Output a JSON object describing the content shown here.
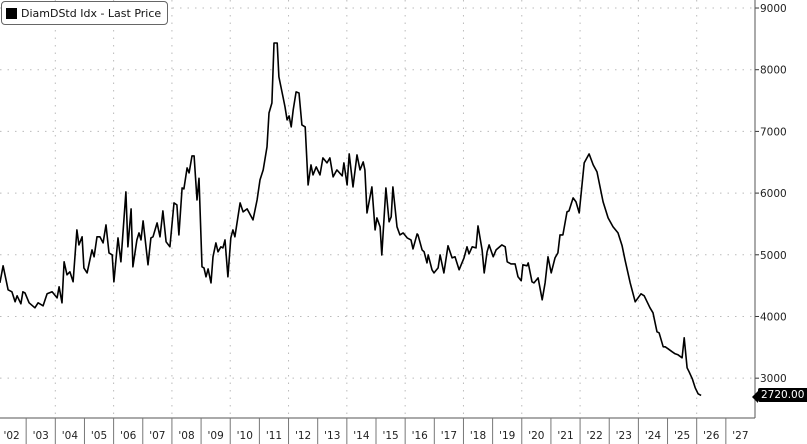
{
  "chart_data": {
    "type": "line",
    "title": "",
    "legend": {
      "label": "DiamDStd Idx - Last Price",
      "placement": "top-left"
    },
    "y_axis": {
      "side": "right",
      "ticks": [
        3000,
        4000,
        5000,
        6000,
        7000,
        8000,
        9000
      ],
      "ylim": [
        2630,
        9130
      ]
    },
    "x_axis": {
      "ticks": [
        "'02",
        "'03",
        "'04",
        "'05",
        "'06",
        "'07",
        "'08",
        "'09",
        "'10",
        "'11",
        "'12",
        "'13",
        "'14",
        "'15",
        "'16",
        "'17",
        "'18",
        "'19",
        "'20",
        "'21",
        "'22",
        "'23",
        "'24",
        "'25",
        "'26",
        "'27"
      ],
      "xlim": [
        2002,
        2028
      ]
    },
    "grid": true,
    "last_value_label": "2720.00",
    "line_color": "#000000",
    "series": [
      {
        "name": "DiamDStd Idx - Last Price",
        "points": [
          [
            2002.1,
            4545
          ],
          [
            2002.21,
            4821
          ],
          [
            2002.38,
            4432
          ],
          [
            2002.51,
            4400
          ],
          [
            2002.62,
            4238
          ],
          [
            2002.69,
            4335
          ],
          [
            2002.82,
            4205
          ],
          [
            2002.89,
            4400
          ],
          [
            2002.96,
            4383
          ],
          [
            2003.1,
            4221
          ],
          [
            2003.3,
            4140
          ],
          [
            2003.41,
            4221
          ],
          [
            2003.58,
            4173
          ],
          [
            2003.72,
            4367
          ],
          [
            2003.89,
            4400
          ],
          [
            2004.06,
            4302
          ],
          [
            2004.13,
            4481
          ],
          [
            2004.23,
            4221
          ],
          [
            2004.3,
            4886
          ],
          [
            2004.4,
            4675
          ],
          [
            2004.5,
            4724
          ],
          [
            2004.61,
            4562
          ],
          [
            2004.74,
            5404
          ],
          [
            2004.81,
            5161
          ],
          [
            2004.92,
            5291
          ],
          [
            2004.98,
            4788
          ],
          [
            2005.09,
            4707
          ],
          [
            2005.26,
            5080
          ],
          [
            2005.33,
            4967
          ],
          [
            2005.43,
            5291
          ],
          [
            2005.53,
            5291
          ],
          [
            2005.64,
            5193
          ],
          [
            2005.74,
            5485
          ],
          [
            2005.84,
            5031
          ],
          [
            2005.95,
            4999
          ],
          [
            2006.01,
            4562
          ],
          [
            2006.15,
            5274
          ],
          [
            2006.25,
            4886
          ],
          [
            2006.42,
            6020
          ],
          [
            2006.49,
            5129
          ],
          [
            2006.6,
            5744
          ],
          [
            2006.66,
            4805
          ],
          [
            2006.8,
            5242
          ],
          [
            2006.87,
            5355
          ],
          [
            2006.94,
            5242
          ],
          [
            2007.01,
            5550
          ],
          [
            2007.18,
            4837
          ],
          [
            2007.28,
            5274
          ],
          [
            2007.35,
            5291
          ],
          [
            2007.49,
            5517
          ],
          [
            2007.59,
            5291
          ],
          [
            2007.69,
            5712
          ],
          [
            2007.8,
            5210
          ],
          [
            2007.93,
            5129
          ],
          [
            2008.07,
            5841
          ],
          [
            2008.17,
            5809
          ],
          [
            2008.24,
            5323
          ],
          [
            2008.35,
            6084
          ],
          [
            2008.41,
            6068
          ],
          [
            2008.52,
            6408
          ],
          [
            2008.59,
            6327
          ],
          [
            2008.69,
            6603
          ],
          [
            2008.76,
            6603
          ],
          [
            2008.86,
            5890
          ],
          [
            2008.93,
            6240
          ],
          [
            2009.03,
            4805
          ],
          [
            2009.1,
            4788
          ],
          [
            2009.17,
            4643
          ],
          [
            2009.24,
            4772
          ],
          [
            2009.34,
            4545
          ],
          [
            2009.41,
            4967
          ],
          [
            2009.51,
            5193
          ],
          [
            2009.58,
            5048
          ],
          [
            2009.68,
            5129
          ],
          [
            2009.75,
            5112
          ],
          [
            2009.82,
            5242
          ],
          [
            2009.92,
            4643
          ],
          [
            2010.02,
            5274
          ],
          [
            2010.09,
            5404
          ],
          [
            2010.16,
            5291
          ],
          [
            2010.34,
            5841
          ],
          [
            2010.44,
            5696
          ],
          [
            2010.58,
            5744
          ],
          [
            2010.78,
            5566
          ],
          [
            2010.92,
            5890
          ],
          [
            2011.02,
            6214
          ],
          [
            2011.13,
            6376
          ],
          [
            2011.26,
            6749
          ],
          [
            2011.33,
            7299
          ],
          [
            2011.43,
            7461
          ],
          [
            2011.5,
            8433
          ],
          [
            2011.61,
            8433
          ],
          [
            2011.67,
            7883
          ],
          [
            2011.81,
            7559
          ],
          [
            2011.88,
            7397
          ],
          [
            2011.95,
            7186
          ],
          [
            2012.02,
            7251
          ],
          [
            2012.09,
            7073
          ],
          [
            2012.16,
            7348
          ],
          [
            2012.26,
            7640
          ],
          [
            2012.36,
            7623
          ],
          [
            2012.46,
            7105
          ],
          [
            2012.57,
            7073
          ],
          [
            2012.67,
            6133
          ],
          [
            2012.77,
            6457
          ],
          [
            2012.84,
            6295
          ],
          [
            2012.95,
            6425
          ],
          [
            2013.08,
            6295
          ],
          [
            2013.18,
            6570
          ],
          [
            2013.32,
            6489
          ],
          [
            2013.42,
            6570
          ],
          [
            2013.53,
            6263
          ],
          [
            2013.66,
            6376
          ],
          [
            2013.84,
            6279
          ],
          [
            2013.9,
            6489
          ],
          [
            2014.01,
            6133
          ],
          [
            2014.08,
            6635
          ],
          [
            2014.21,
            6101
          ],
          [
            2014.35,
            6619
          ],
          [
            2014.45,
            6376
          ],
          [
            2014.56,
            6506
          ],
          [
            2014.62,
            6376
          ],
          [
            2014.69,
            5679
          ],
          [
            2014.86,
            6101
          ],
          [
            2014.97,
            5404
          ],
          [
            2015.03,
            5598
          ],
          [
            2015.14,
            5453
          ],
          [
            2015.2,
            4999
          ],
          [
            2015.34,
            6084
          ],
          [
            2015.45,
            5534
          ],
          [
            2015.52,
            5615
          ],
          [
            2015.58,
            6101
          ],
          [
            2015.72,
            5453
          ],
          [
            2015.82,
            5323
          ],
          [
            2015.93,
            5355
          ],
          [
            2016.07,
            5274
          ],
          [
            2016.2,
            5242
          ],
          [
            2016.27,
            5096
          ],
          [
            2016.41,
            5339
          ],
          [
            2016.44,
            5323
          ],
          [
            2016.58,
            5080
          ],
          [
            2016.65,
            5048
          ],
          [
            2016.75,
            4869
          ],
          [
            2016.79,
            4999
          ],
          [
            2016.92,
            4756
          ],
          [
            2016.99,
            4707
          ],
          [
            2017.13,
            4788
          ],
          [
            2017.2,
            4999
          ],
          [
            2017.33,
            4707
          ],
          [
            2017.47,
            5145
          ],
          [
            2017.61,
            4950
          ],
          [
            2017.71,
            4967
          ],
          [
            2017.85,
            4756
          ],
          [
            2018.02,
            4950
          ],
          [
            2018.12,
            5129
          ],
          [
            2018.19,
            5015
          ],
          [
            2018.3,
            5129
          ],
          [
            2018.43,
            5112
          ],
          [
            2018.5,
            5469
          ],
          [
            2018.64,
            5080
          ],
          [
            2018.71,
            4707
          ],
          [
            2018.81,
            5048
          ],
          [
            2018.88,
            5161
          ],
          [
            2019.02,
            4967
          ],
          [
            2019.12,
            5080
          ],
          [
            2019.32,
            5161
          ],
          [
            2019.43,
            5129
          ],
          [
            2019.5,
            4886
          ],
          [
            2019.63,
            4853
          ],
          [
            2019.77,
            4853
          ],
          [
            2019.87,
            4643
          ],
          [
            2019.98,
            4578
          ],
          [
            2020.04,
            4837
          ],
          [
            2020.18,
            4821
          ],
          [
            2020.22,
            4869
          ],
          [
            2020.35,
            4562
          ],
          [
            2020.42,
            4545
          ],
          [
            2020.56,
            4626
          ],
          [
            2020.7,
            4270
          ],
          [
            2020.8,
            4545
          ],
          [
            2020.9,
            4967
          ],
          [
            2021.01,
            4707
          ],
          [
            2021.14,
            4950
          ],
          [
            2021.24,
            5031
          ],
          [
            2021.31,
            5323
          ],
          [
            2021.41,
            5323
          ],
          [
            2021.55,
            5696
          ],
          [
            2021.62,
            5712
          ],
          [
            2021.76,
            5922
          ],
          [
            2021.86,
            5858
          ],
          [
            2021.97,
            5679
          ],
          [
            2022.14,
            6489
          ],
          [
            2022.31,
            6635
          ],
          [
            2022.45,
            6457
          ],
          [
            2022.58,
            6344
          ],
          [
            2022.79,
            5858
          ],
          [
            2022.96,
            5598
          ],
          [
            2023.13,
            5453
          ],
          [
            2023.3,
            5355
          ],
          [
            2023.44,
            5145
          ],
          [
            2023.54,
            4918
          ],
          [
            2023.72,
            4545
          ],
          [
            2023.89,
            4238
          ],
          [
            2024.09,
            4367
          ],
          [
            2024.2,
            4335
          ],
          [
            2024.4,
            4140
          ],
          [
            2024.5,
            4059
          ],
          [
            2024.64,
            3752
          ],
          [
            2024.71,
            3735
          ],
          [
            2024.85,
            3509
          ],
          [
            2024.92,
            3509
          ],
          [
            2025.02,
            3476
          ],
          [
            2025.16,
            3428
          ],
          [
            2025.26,
            3395
          ],
          [
            2025.36,
            3379
          ],
          [
            2025.5,
            3330
          ],
          [
            2025.57,
            3654
          ],
          [
            2025.67,
            3168
          ],
          [
            2025.74,
            3104
          ],
          [
            2025.85,
            2990
          ],
          [
            2025.95,
            2844
          ],
          [
            2026.05,
            2747
          ],
          [
            2026.15,
            2720
          ]
        ]
      }
    ]
  }
}
